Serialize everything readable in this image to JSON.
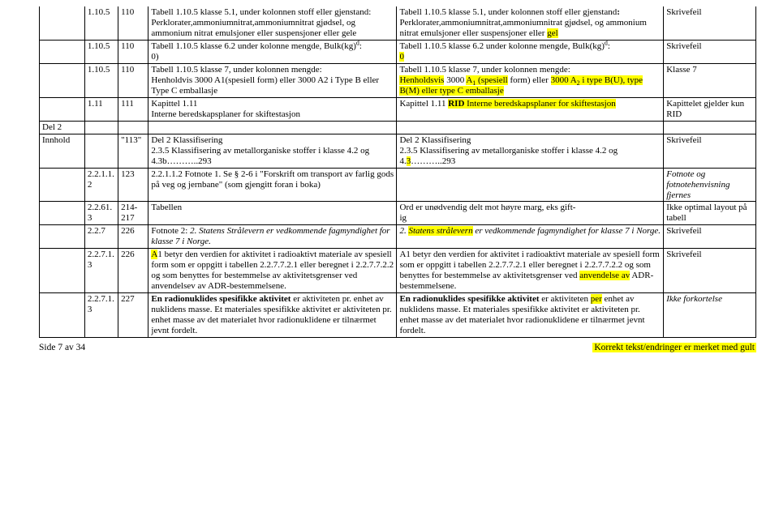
{
  "colwidths": [
    "54px",
    "40px",
    "36px",
    "296px",
    "318px",
    "110px"
  ],
  "rows": [
    {
      "c0": "",
      "c1": "1.10.5",
      "c2": "110",
      "c3": "Tabell 1.10.5 klasse 5.1, under kolonnen stoff eller gjenstand:\nPerklorater,ammoniumnitrat,ammoniumnitrat gjødsel, og ammonium nitrat emulsjoner eller suspensjoner eller gele",
      "c4": {
        "pre": "Tabell 1.10.5 klasse 5.1, under kolonnen stoff eller gjenstand",
        "b": ":",
        "post": "\nPerklorater,ammoniumnitrat,ammoniumnitrat gjødsel, og ammonium nitrat emulsjoner eller suspensjoner eller ",
        "hl": "gel"
      },
      "c5": "Skrivefeil",
      "firstNoTop": true
    },
    {
      "c0": "",
      "c1": "1.10.5",
      "c2": "110",
      "c3": {
        "text": "Tabell 1.10.5 klasse 6.2 under kolonne mengde, Bulk(kg)",
        "sup": "d",
        "post": ":\n0)"
      },
      "c4": {
        "pre": "Tabell 1.10.5 klasse 6.2 under kolonne mengde, Bulk(kg)",
        "sup": "d",
        "post": ":\n",
        "hl": "0"
      },
      "c5": "Skrivefeil"
    },
    {
      "c0": "",
      "c1": "1.10.5",
      "c2": "110",
      "c3": "Tabell 1.10.5 klasse 7, under kolonnen mengde:\nHenholdvis 3000 A1(spesiell form) eller 3000 A2 i Type B eller Type C emballasje",
      "c4": {
        "html": "Tabell 1.10.5 klasse 7, under kolonnen mengde:<br><span class='hl'>Henholdsvis</span> 3000 <span class='hl'>A<sub>1</sub> (spesiell</span> form) eller <span class='hl'>3000 A<sub>2</sub> i type B(U), type B(M) eller type C emballasje</span>"
      },
      "c5": "Klasse 7"
    },
    {
      "c0": "",
      "c1": "1.11",
      "c2": "111",
      "c3": "Kapittel 1.11\nInterne beredskapsplaner for skiftestasjon",
      "c4": {
        "html": "Kapittel 1.11 <span class='hl'><b>RID</b> Interne beredskapsplaner for skiftestasjon</span>"
      },
      "c5": "Kapittelet gjelder kun RID"
    },
    {
      "c0": "Del 2",
      "c1": "",
      "c2": "",
      "c3": "",
      "c4": "",
      "c5": ""
    },
    {
      "c0": "Innhold",
      "c1": "",
      "c2": "\"113\"",
      "c3": "Del 2 Klassifisering\n2.3.5 Klassifisering av metallorganiske stoffer i klasse 4.2 og 4.3b………..293",
      "c4": {
        "html": "Del 2 Klassifisering<br>2.3.5 Klassifisering av metallorganiske stoffer i klasse 4.2 og 4.<span class='hl'>3</span>………..293"
      },
      "c5": "Skrivefeil"
    },
    {
      "c0": "",
      "c1": "2.2.1.1.2",
      "c2": "123",
      "c3": "2.2.1.1.2 Fotnote 1. Se § 2-6 i \"Forskrift om transport av farlig gods på veg og jernbane\" (som gjengitt foran i boka)",
      "c4": "",
      "c5": {
        "html": "<i>Fotnote og fotnotehenvisning fjernes</i>"
      }
    },
    {
      "c0": "",
      "c1": "2.2.61.3",
      "c2": "214-217",
      "c3": "Tabellen",
      "c4": "Ord er unødvendig delt mot høyre marg, eks gift-\nig",
      "c5": "Ikke optimal layout på tabell"
    },
    {
      "c0": "",
      "c1": "2.2.7",
      "c2": "226",
      "c3": {
        "html": "Fotnote 2: <i>2. Statens Strålevern er vedkommende fagmyndighet for klasse 7 i Norge.</i>"
      },
      "c4": {
        "html": "<i>2. <span class='hl'>Statens strålevern</span> er vedkommende fagmyndighet for klasse 7 i Norge.</i>"
      },
      "c5": "Skrivefeil"
    },
    {
      "c0": "",
      "c1": "2.2.7.1.3",
      "c2": "226",
      "c3": {
        "html": "<span class='hl'>A</span>1 betyr den verdien for aktivitet i radioaktivt materiale av spesiell form som er oppgitt i tabellen 2.2.7.7.2.1 eller beregnet i 2.2.7.7.2.2 og som benyttes for bestemmelse av aktivitetsgrenser ved anvendelsev av ADR-bestemmelsene."
      },
      "c4": {
        "html": "A1 betyr den verdien for aktivitet i radioaktivt materiale av spesiell form som er oppgitt i tabellen 2.2.7.7.2.1 eller beregnet i 2.2.7.7.2.2 og som benyttes for bestemmelse av aktivitetsgrenser ved <span class='hl'>anvendelse av</span> ADR-bestemmelsene."
      },
      "c5": "Skrivefeil"
    },
    {
      "c0": "",
      "c1": "2.2.7.1.3",
      "c2": "227",
      "c3": {
        "html": "<b>En radionuklides spesifikke aktivitet</b> er aktiviteten pr. enhet av nuklidens masse. Et materiales spesifikke aktivitet er aktiviteten pr. enhet masse av det materialet hvor radionuklidene er tilnærmet jevnt fordelt."
      },
      "c4": {
        "html": "<b>En radionuklides spesifikke aktivitet</b> er aktiviteten <span class='hl'>per</span> enhet av nuklidens masse. Et materiales spesifikke aktivitet er aktiviteten pr. enhet masse av det materialet hvor radionuklidene er tilnærmet jevnt fordelt."
      },
      "c5": {
        "html": "<i>Ikke forkortelse</i>"
      }
    }
  ],
  "footer": {
    "left": "Side 7 av 34",
    "right": "Korrekt tekst/endringer er merket med gult"
  }
}
